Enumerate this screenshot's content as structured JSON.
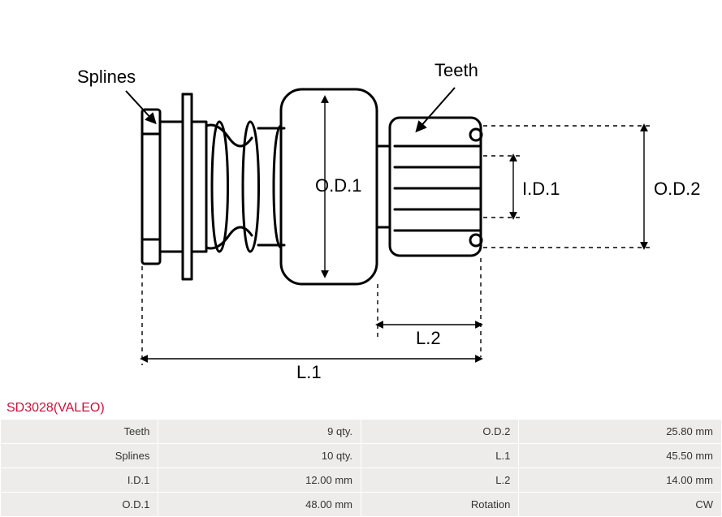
{
  "product": {
    "title": "SD3028(VALEO)"
  },
  "diagram": {
    "labels": {
      "splines": "Splines",
      "teeth": "Teeth",
      "od1": "O.D.1",
      "od2": "O.D.2",
      "id1": "I.D.1",
      "l1": "L.1",
      "l2": "L.2"
    },
    "style": {
      "stroke": "#000000",
      "stroke_width_main": 3,
      "stroke_width_dim": 1.2,
      "dash": "4,4",
      "font_family": "Arial",
      "font_size_label": 22,
      "font_size_dim": 22
    }
  },
  "specs": {
    "rows": [
      {
        "label1": "Teeth",
        "value1": "9 qty.",
        "label2": "O.D.2",
        "value2": "25.80 mm"
      },
      {
        "label1": "Splines",
        "value1": "10 qty.",
        "label2": "L.1",
        "value2": "45.50 mm"
      },
      {
        "label1": "I.D.1",
        "value1": "12.00 mm",
        "label2": "L.2",
        "value2": "14.00 mm"
      },
      {
        "label1": "O.D.1",
        "value1": "48.00 mm",
        "label2": "Rotation",
        "value2": "CW"
      }
    ]
  }
}
